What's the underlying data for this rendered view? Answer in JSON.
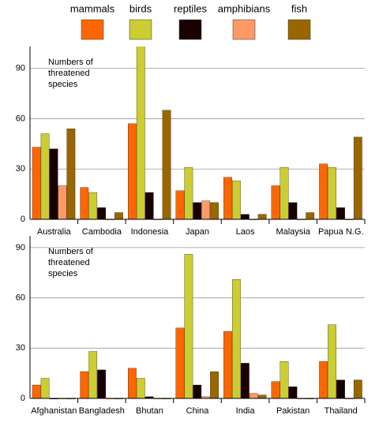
{
  "chart_data": [
    {
      "type": "bar",
      "annotation": [
        "Numbers of",
        "threatened",
        "species"
      ],
      "categories": [
        "Australia",
        "Cambodia",
        "Indonesia",
        "Japan",
        "Laos",
        "Malaysia",
        "Papua N.G."
      ],
      "series": [
        {
          "name": "mammals",
          "color": "#ff6600",
          "values": [
            43,
            19,
            57,
            17,
            25,
            20,
            33
          ]
        },
        {
          "name": "birds",
          "color": "#cccc33",
          "values": [
            51,
            16,
            105,
            31,
            23,
            31,
            31
          ]
        },
        {
          "name": "reptiles",
          "color": "#1a0000",
          "values": [
            42,
            7,
            16,
            10,
            3,
            10,
            7
          ]
        },
        {
          "name": "amphibians",
          "color": "#ff9966",
          "values": [
            20,
            0,
            0,
            11,
            0,
            0,
            0
          ]
        },
        {
          "name": "fish",
          "color": "#996600",
          "values": [
            54,
            4,
            65,
            10,
            3,
            4,
            49
          ]
        }
      ],
      "ylim": [
        0,
        103
      ],
      "yticks": [
        0,
        30,
        60,
        90
      ],
      "grid": true
    },
    {
      "type": "bar",
      "annotation": [
        "Numbers of",
        "threatened",
        "species"
      ],
      "categories": [
        "Afghanistan",
        "Bangladesh",
        "Bhutan",
        "China",
        "India",
        "Pakistan",
        "Thailand"
      ],
      "series": [
        {
          "color": "#ff6600",
          "values": [
            8,
            16,
            18,
            42,
            40,
            10,
            22
          ]
        },
        {
          "color": "#cccc33",
          "values": [
            12,
            28,
            12,
            86,
            71,
            22,
            44
          ]
        },
        {
          "color": "#1a0000",
          "values": [
            0,
            17,
            1,
            8,
            21,
            7,
            11
          ]
        },
        {
          "color": "#ff9966",
          "values": [
            0,
            0,
            0,
            1,
            3,
            0,
            0
          ]
        },
        {
          "color": "#996600",
          "values": [
            0,
            0,
            0,
            16,
            2,
            0,
            11
          ]
        }
      ],
      "ylim": [
        0,
        97
      ],
      "yticks": [
        0,
        30,
        60,
        90
      ],
      "grid": true
    }
  ]
}
